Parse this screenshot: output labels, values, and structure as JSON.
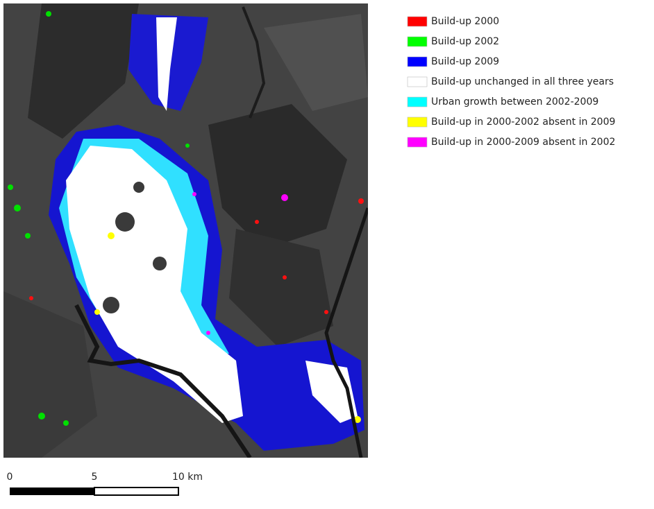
{
  "legend": {
    "items": [
      {
        "label": "Build-up 2000",
        "color": "#ff0000"
      },
      {
        "label": "Build-up 2002",
        "color": "#00ff00"
      },
      {
        "label": "Build-up 2009",
        "color": "#0000ff"
      },
      {
        "label": "Build-up unchanged in all three years",
        "color": "#ffffff"
      },
      {
        "label": "Urban growth between 2002-2009",
        "color": "#00ffff"
      },
      {
        "label": "Build-up in 2000-2002 absent in 2009",
        "color": "#ffff00"
      },
      {
        "label": "Build-up in 2000-2009 absent in 2002",
        "color": "#ff00ff"
      }
    ]
  },
  "scale_bar": {
    "labels": [
      "0",
      "5",
      "10 km"
    ]
  }
}
